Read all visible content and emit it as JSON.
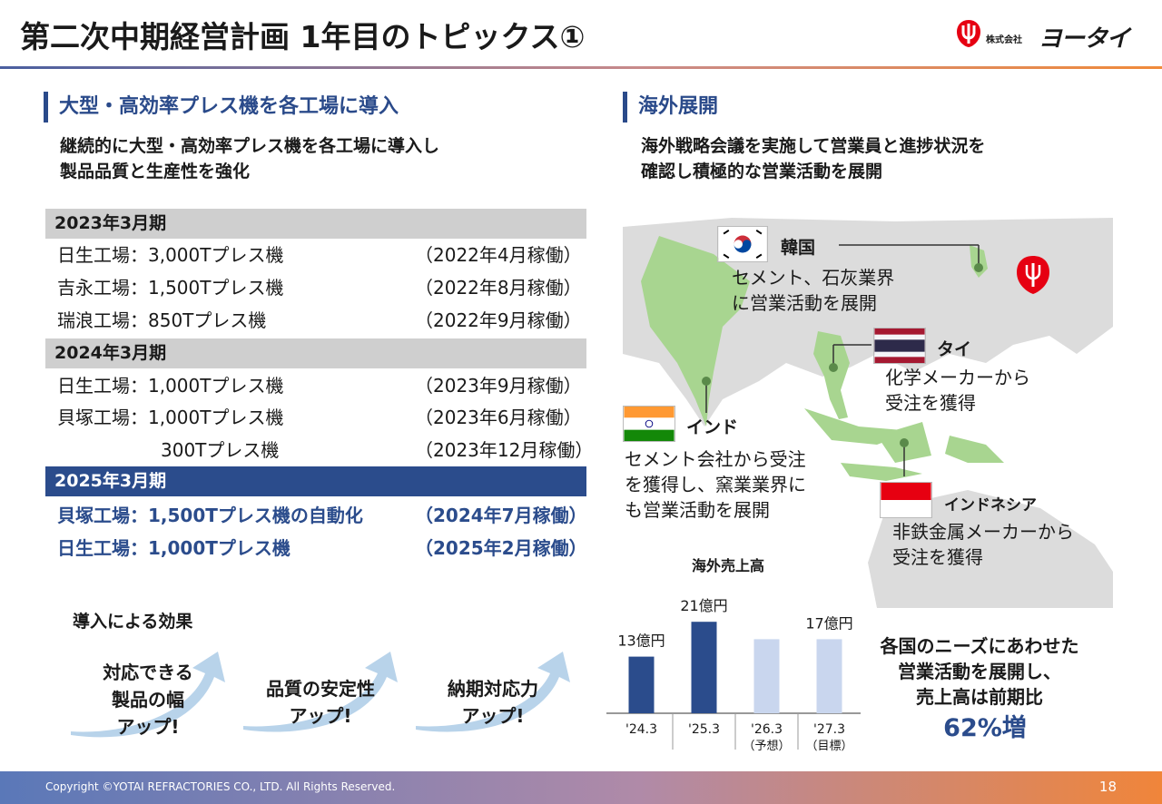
{
  "header": {
    "title": "第二次中期経営計画 1年目のトピックス①",
    "logo_small": "株式会社",
    "logo_name": "ヨータイ"
  },
  "left": {
    "section_title": "大型・高効率プレス機を各工場に導入",
    "lead_line1": "継続的に大型・高効率プレス機を各工場に導入し",
    "lead_line2": "製品品質と生産性を強化",
    "periods": [
      {
        "label": "2023年3月期",
        "rows": [
          {
            "plant": "日生工場：3,000Tプレス機",
            "start": "（2022年4月稼働）"
          },
          {
            "plant": "吉永工場：1,500Tプレス機",
            "start": "（2022年8月稼働）"
          },
          {
            "plant": "瑞浪工場：850Tプレス機",
            "start": "（2022年9月稼働）"
          }
        ]
      },
      {
        "label": "2024年3月期",
        "rows": [
          {
            "plant": "日生工場：1,000Tプレス機",
            "start": "（2023年9月稼働）"
          },
          {
            "plant": "貝塚工場：1,000Tプレス機",
            "start": "（2023年6月稼働）"
          },
          {
            "plant": "300Tプレス機",
            "start": "（2023年12月稼働）"
          }
        ]
      },
      {
        "label": "2025年3月期",
        "rows": [
          {
            "plant": "貝塚工場：1,500Tプレス機の自動化",
            "start": "（2024年7月稼働）"
          },
          {
            "plant": "日生工場：1,000Tプレス機",
            "start": "（2025年2月稼働）"
          }
        ]
      }
    ],
    "effects_title": "導入による効果",
    "effects": [
      {
        "line1": "対応できる",
        "line2": "製品の幅",
        "line3": "アップ!"
      },
      {
        "line1": "品質の安定性",
        "line2": "アップ!"
      },
      {
        "line1": "納期対応力",
        "line2": "アップ!"
      }
    ]
  },
  "right": {
    "section_title": "海外展開",
    "lead_line1": "海外戦略会議を実施して営業員と進捗状況を",
    "lead_line2": "確認し積極的な営業活動を展開",
    "countries": {
      "korea": {
        "name": "韓国",
        "note1": "セメント、石灰業界",
        "note2": "に営業活動を展開"
      },
      "thailand": {
        "name": "タイ",
        "note1": "化学メーカーから",
        "note2": "受注を獲得"
      },
      "india": {
        "name": "インド",
        "note1": "セメント会社から受注",
        "note2": "を獲得し、窯業業界に",
        "note3": "も営業活動を展開"
      },
      "indonesia": {
        "name": "インドネシア",
        "note1": "非鉄金属メーカーから",
        "note2": "受注を獲得"
      }
    },
    "summary_line1": "各国のニーズにあわせた",
    "summary_line2": "営業活動を展開し、",
    "summary_line3": "売上高は前期比",
    "summary_big": "62%増"
  },
  "chart_data": {
    "type": "bar",
    "title": "海外売上高",
    "categories": [
      "'24.3",
      "'25.3",
      "'26.3",
      "'27.3"
    ],
    "category_sublabels": [
      "",
      "",
      "（予想）",
      "（目標）"
    ],
    "values": [
      13,
      21,
      17,
      17
    ],
    "value_labels": [
      "13億円",
      "21億円",
      "",
      "17億円"
    ],
    "unit": "億円",
    "colors": [
      "#2b4c8c",
      "#2b4c8c",
      "#c9d6ee",
      "#c9d6ee"
    ],
    "ylim": [
      0,
      25
    ]
  },
  "footer": {
    "copyright": "Copyright ©YOTAI REFRACTORIES CO., LTD. All Rights Reserved.",
    "page_number": "18"
  }
}
